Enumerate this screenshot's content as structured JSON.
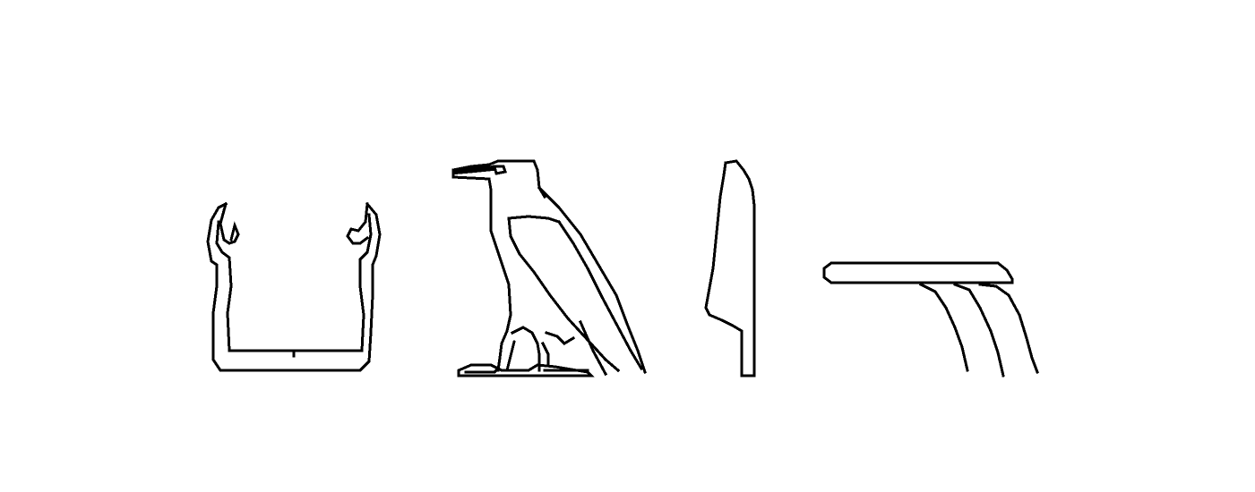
{
  "colors": {
    "background": "#ffffff",
    "ink": "#000000"
  },
  "glyphs": [
    {
      "icon": "ka-arms-glyph-icon"
    },
    {
      "icon": "vulture-glyph-icon"
    },
    {
      "icon": "reed-leaf-glyph-icon"
    },
    {
      "icon": "water-pot-glyph-icon"
    }
  ]
}
